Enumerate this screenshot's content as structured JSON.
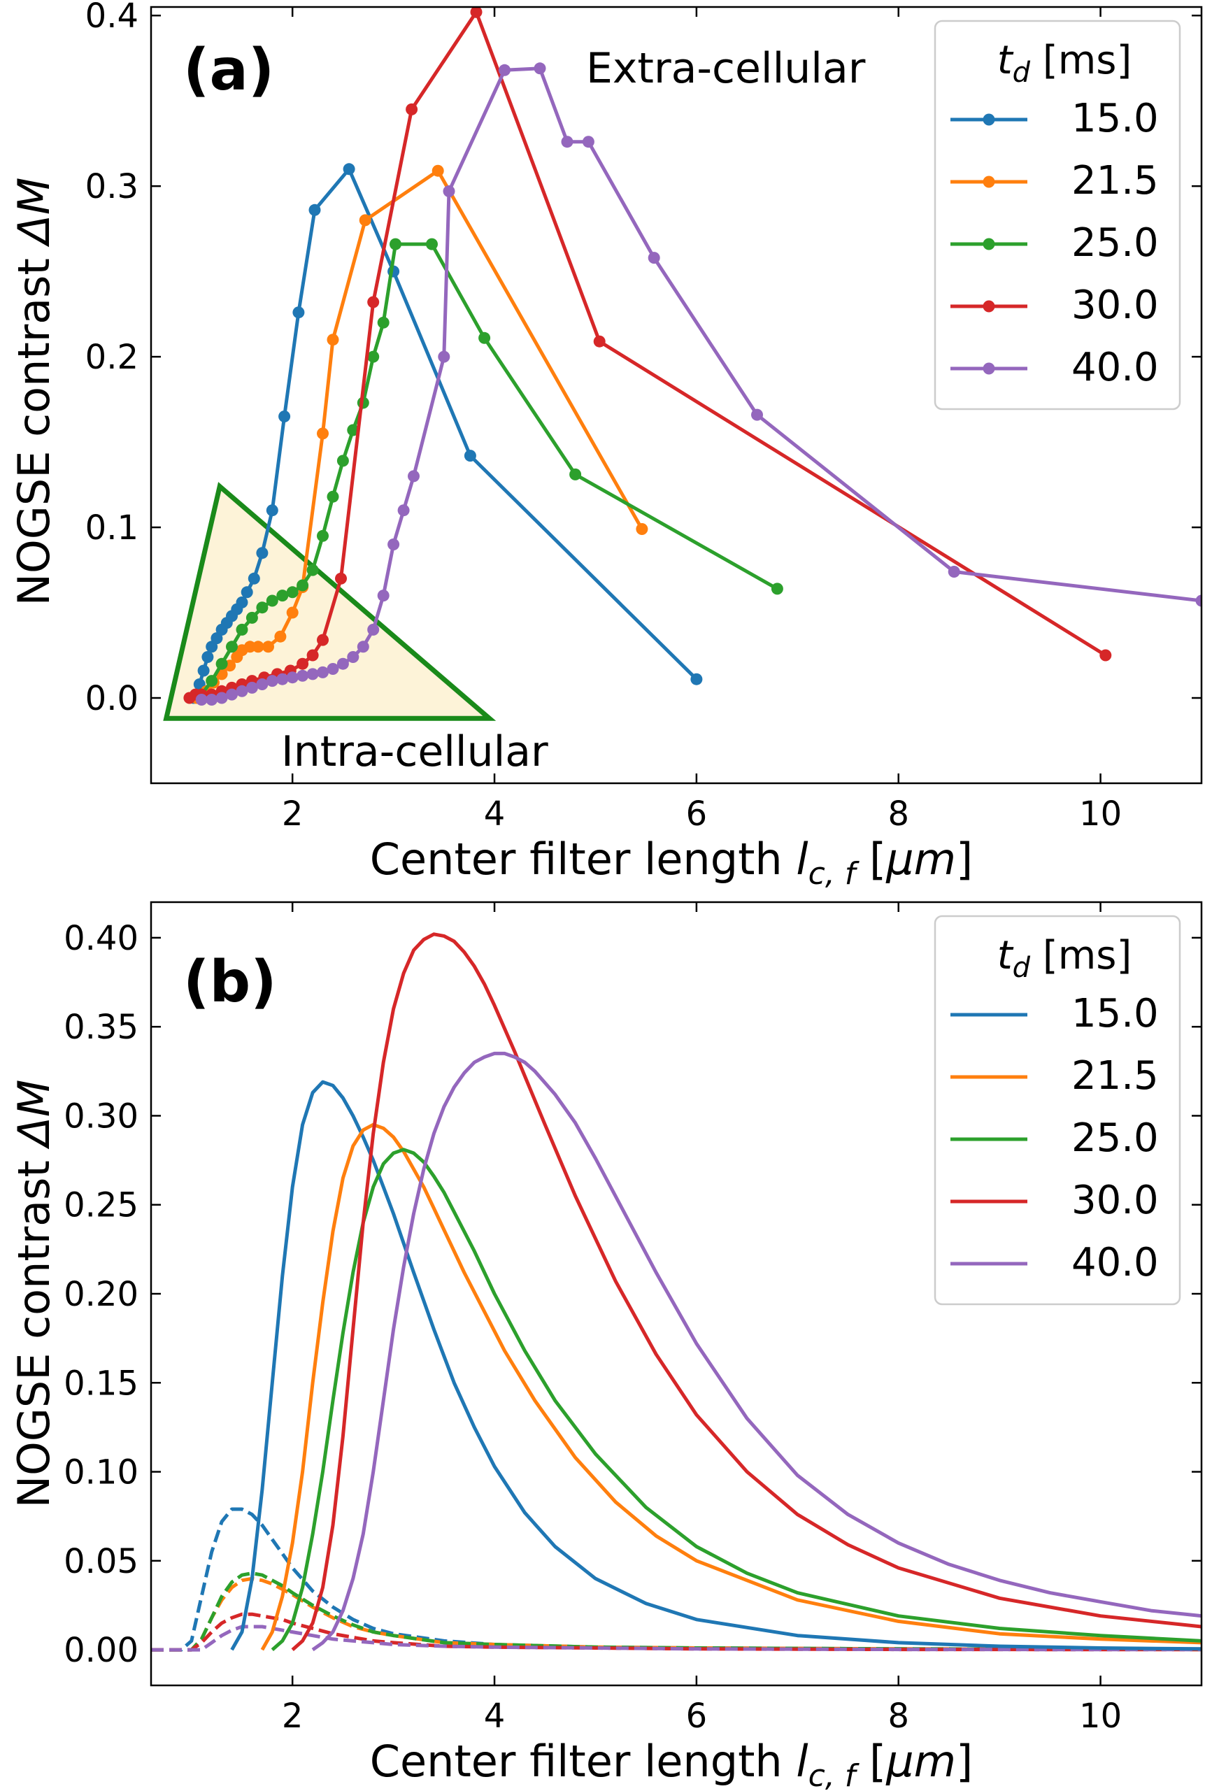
{
  "chart_data": [
    {
      "panel": "(a)",
      "type": "line",
      "xlabel": "Center filter length l_{c,f} [μm]",
      "ylabel": "NOGSE contrast ΔM",
      "xlim": [
        0.6,
        11.0
      ],
      "ylim": [
        -0.05,
        0.405
      ],
      "xticks": [
        2,
        4,
        6,
        8,
        10
      ],
      "yticks": [
        0.0,
        0.1,
        0.2,
        0.3,
        0.4
      ],
      "ytick_labels": [
        "0.0",
        "0.1",
        "0.2",
        "0.3",
        "0.4"
      ],
      "legend_title": "t_d [ms]",
      "legend_loc": "upper right",
      "annotations": {
        "extra": "Extra-cellular",
        "intra": "Intra-cellular"
      },
      "region": {
        "label": "Intra-cellular",
        "vertices": [
          [
            0.75,
            -0.012
          ],
          [
            1.28,
            0.124
          ],
          [
            3.95,
            -0.012
          ]
        ],
        "fill": "#fdf3d8",
        "edge": "#1a8a1a"
      },
      "series": [
        {
          "name": "15.0",
          "color": "#1f77b4",
          "x": [
            1.02,
            1.08,
            1.12,
            1.16,
            1.2,
            1.25,
            1.3,
            1.35,
            1.4,
            1.45,
            1.5,
            1.55,
            1.62,
            1.7,
            1.8,
            1.92,
            2.06,
            2.22,
            2.56,
            3.0,
            3.76,
            6.0
          ],
          "y": [
            0.0,
            0.008,
            0.016,
            0.024,
            0.03,
            0.035,
            0.04,
            0.044,
            0.048,
            0.052,
            0.056,
            0.062,
            0.07,
            0.085,
            0.11,
            0.165,
            0.226,
            0.286,
            0.31,
            0.25,
            0.142,
            0.011
          ]
        },
        {
          "name": "21.5",
          "color": "#ff7f0e",
          "x": [
            1.05,
            1.15,
            1.22,
            1.3,
            1.38,
            1.45,
            1.5,
            1.58,
            1.66,
            1.76,
            1.88,
            2.0,
            2.1,
            2.3,
            2.4,
            2.72,
            3.44,
            5.46
          ],
          "y": [
            0.0,
            0.004,
            0.009,
            0.014,
            0.019,
            0.024,
            0.028,
            0.03,
            0.03,
            0.03,
            0.036,
            0.05,
            0.065,
            0.155,
            0.21,
            0.28,
            0.309,
            0.099
          ]
        },
        {
          "name": "25.0",
          "color": "#2ca02c",
          "x": [
            1.1,
            1.2,
            1.3,
            1.4,
            1.5,
            1.6,
            1.7,
            1.8,
            1.9,
            2.0,
            2.1,
            2.2,
            2.3,
            2.4,
            2.5,
            2.6,
            2.7,
            2.8,
            2.9,
            3.02,
            3.38,
            3.9,
            4.8,
            6.8
          ],
          "y": [
            0.002,
            0.01,
            0.02,
            0.03,
            0.04,
            0.047,
            0.053,
            0.057,
            0.06,
            0.062,
            0.066,
            0.075,
            0.095,
            0.118,
            0.139,
            0.157,
            0.173,
            0.2,
            0.22,
            0.266,
            0.266,
            0.211,
            0.131,
            0.064
          ]
        },
        {
          "name": "30.0",
          "color": "#d62728",
          "x": [
            0.98,
            1.04,
            1.1,
            1.2,
            1.3,
            1.4,
            1.5,
            1.6,
            1.72,
            1.85,
            1.98,
            2.1,
            2.2,
            2.3,
            2.48,
            2.8,
            3.18,
            3.82,
            5.04,
            10.05
          ],
          "y": [
            0.0,
            0.002,
            0.002,
            0.002,
            0.004,
            0.006,
            0.008,
            0.01,
            0.012,
            0.014,
            0.016,
            0.02,
            0.025,
            0.034,
            0.07,
            0.232,
            0.345,
            0.402,
            0.209,
            0.025
          ]
        },
        {
          "name": "40.0",
          "color": "#9467bd",
          "x": [
            1.1,
            1.2,
            1.3,
            1.4,
            1.5,
            1.6,
            1.7,
            1.8,
            1.9,
            2.0,
            2.1,
            2.2,
            2.3,
            2.4,
            2.5,
            2.6,
            2.7,
            2.8,
            2.9,
            3.0,
            3.1,
            3.2,
            3.5,
            3.55,
            4.1,
            4.45,
            4.72,
            4.93,
            5.58,
            6.6,
            8.55,
            11.0
          ],
          "y": [
            -0.001,
            -0.001,
            0.0,
            0.002,
            0.004,
            0.006,
            0.008,
            0.01,
            0.011,
            0.012,
            0.013,
            0.014,
            0.015,
            0.017,
            0.02,
            0.024,
            0.03,
            0.04,
            0.06,
            0.09,
            0.11,
            0.13,
            0.2,
            0.297,
            0.368,
            0.369,
            0.326,
            0.326,
            0.258,
            0.166,
            0.074,
            0.057
          ]
        }
      ]
    },
    {
      "panel": "(b)",
      "type": "line",
      "xlabel": "Center filter length l_{c,f} [μm]",
      "ylabel": "NOGSE contrast ΔM",
      "xlim": [
        0.6,
        11.0
      ],
      "ylim": [
        -0.02,
        0.42
      ],
      "xticks": [
        2,
        4,
        6,
        8,
        10
      ],
      "yticks": [
        0.0,
        0.05,
        0.1,
        0.15,
        0.2,
        0.25,
        0.3,
        0.35,
        0.4
      ],
      "ytick_labels": [
        "0.00",
        "0.05",
        "0.10",
        "0.15",
        "0.20",
        "0.25",
        "0.30",
        "0.35",
        "0.40"
      ],
      "legend_title": "t_d [ms]",
      "legend_loc": "upper right",
      "series": [
        {
          "name": "15.0",
          "color": "#1f77b4",
          "x": [
            1.4,
            1.5,
            1.6,
            1.7,
            1.8,
            1.9,
            2.0,
            2.1,
            2.2,
            2.3,
            2.4,
            2.5,
            2.6,
            2.7,
            2.8,
            2.9,
            3.0,
            3.2,
            3.4,
            3.6,
            3.8,
            4.0,
            4.3,
            4.6,
            5.0,
            5.5,
            6.0,
            7.0,
            8.0,
            9.0,
            10.0,
            11.0
          ],
          "y": [
            0.0,
            0.01,
            0.04,
            0.09,
            0.15,
            0.21,
            0.26,
            0.295,
            0.313,
            0.319,
            0.317,
            0.31,
            0.3,
            0.288,
            0.275,
            0.26,
            0.245,
            0.212,
            0.18,
            0.15,
            0.125,
            0.103,
            0.077,
            0.058,
            0.04,
            0.026,
            0.017,
            0.008,
            0.004,
            0.002,
            0.001,
            0.0005
          ]
        },
        {
          "name": "21.5",
          "color": "#ff7f0e",
          "x": [
            1.7,
            1.8,
            1.9,
            2.0,
            2.1,
            2.2,
            2.3,
            2.4,
            2.5,
            2.6,
            2.7,
            2.8,
            2.9,
            3.0,
            3.1,
            3.2,
            3.3,
            3.4,
            3.5,
            3.7,
            3.9,
            4.1,
            4.4,
            4.8,
            5.2,
            5.6,
            6.0,
            7.0,
            8.0,
            9.0,
            10.0,
            11.0
          ],
          "y": [
            0.0,
            0.01,
            0.03,
            0.06,
            0.1,
            0.15,
            0.195,
            0.235,
            0.265,
            0.283,
            0.292,
            0.295,
            0.293,
            0.288,
            0.28,
            0.27,
            0.26,
            0.248,
            0.236,
            0.212,
            0.19,
            0.168,
            0.14,
            0.108,
            0.083,
            0.064,
            0.05,
            0.028,
            0.016,
            0.009,
            0.006,
            0.004
          ]
        },
        {
          "name": "25.0",
          "color": "#2ca02c",
          "x": [
            1.8,
            1.9,
            2.0,
            2.1,
            2.2,
            2.3,
            2.4,
            2.5,
            2.6,
            2.7,
            2.8,
            2.9,
            3.0,
            3.1,
            3.2,
            3.3,
            3.4,
            3.5,
            3.6,
            3.8,
            4.0,
            4.3,
            4.6,
            5.0,
            5.5,
            6.0,
            6.5,
            7.0,
            8.0,
            9.0,
            10.0,
            11.0
          ],
          "y": [
            0.0,
            0.005,
            0.015,
            0.035,
            0.065,
            0.1,
            0.14,
            0.178,
            0.212,
            0.24,
            0.26,
            0.273,
            0.279,
            0.281,
            0.279,
            0.274,
            0.266,
            0.257,
            0.246,
            0.224,
            0.2,
            0.168,
            0.14,
            0.11,
            0.08,
            0.058,
            0.043,
            0.032,
            0.019,
            0.012,
            0.008,
            0.005
          ]
        },
        {
          "name": "30.0",
          "color": "#d62728",
          "x": [
            2.0,
            2.1,
            2.2,
            2.3,
            2.4,
            2.5,
            2.6,
            2.7,
            2.8,
            2.9,
            3.0,
            3.1,
            3.2,
            3.3,
            3.4,
            3.5,
            3.6,
            3.7,
            3.8,
            3.9,
            4.0,
            4.2,
            4.5,
            4.8,
            5.2,
            5.6,
            6.0,
            6.5,
            7.0,
            7.5,
            8.0,
            9.0,
            10.0,
            11.0
          ],
          "y": [
            0.0,
            0.005,
            0.015,
            0.035,
            0.07,
            0.12,
            0.18,
            0.24,
            0.29,
            0.33,
            0.36,
            0.38,
            0.393,
            0.399,
            0.402,
            0.401,
            0.398,
            0.392,
            0.384,
            0.374,
            0.362,
            0.336,
            0.295,
            0.255,
            0.207,
            0.166,
            0.132,
            0.1,
            0.076,
            0.059,
            0.046,
            0.029,
            0.019,
            0.013
          ]
        },
        {
          "name": "40.0",
          "color": "#9467bd",
          "x": [
            2.2,
            2.3,
            2.4,
            2.5,
            2.6,
            2.7,
            2.8,
            2.9,
            3.0,
            3.1,
            3.2,
            3.3,
            3.4,
            3.5,
            3.6,
            3.7,
            3.8,
            3.9,
            4.0,
            4.1,
            4.2,
            4.3,
            4.4,
            4.6,
            4.8,
            5.0,
            5.3,
            5.6,
            6.0,
            6.5,
            7.0,
            7.5,
            8.0,
            8.5,
            9.0,
            9.5,
            10.0,
            10.5,
            11.0
          ],
          "y": [
            0.0,
            0.004,
            0.01,
            0.022,
            0.04,
            0.065,
            0.1,
            0.14,
            0.18,
            0.215,
            0.245,
            0.27,
            0.29,
            0.305,
            0.316,
            0.324,
            0.33,
            0.333,
            0.335,
            0.335,
            0.333,
            0.33,
            0.325,
            0.312,
            0.296,
            0.276,
            0.244,
            0.212,
            0.172,
            0.13,
            0.098,
            0.076,
            0.06,
            0.048,
            0.039,
            0.032,
            0.027,
            0.022,
            0.019
          ]
        }
      ],
      "dashed_series": [
        {
          "name": "15.0",
          "color": "#1f77b4",
          "x": [
            0.6,
            0.9,
            1.0,
            1.1,
            1.2,
            1.3,
            1.4,
            1.5,
            1.6,
            1.7,
            1.8,
            1.9,
            2.0,
            2.2,
            2.4,
            2.6,
            2.8,
            3.0,
            3.5,
            4.0,
            5.0,
            6.0,
            8.0,
            11.0
          ],
          "y": [
            0.0,
            0.0,
            0.005,
            0.03,
            0.055,
            0.072,
            0.079,
            0.079,
            0.076,
            0.07,
            0.062,
            0.054,
            0.046,
            0.033,
            0.024,
            0.017,
            0.012,
            0.009,
            0.005,
            0.003,
            0.0015,
            0.001,
            0.0005,
            0.0002
          ]
        },
        {
          "name": "21.5",
          "color": "#ff7f0e",
          "x": [
            0.6,
            1.0,
            1.1,
            1.2,
            1.3,
            1.4,
            1.5,
            1.6,
            1.7,
            1.8,
            1.9,
            2.0,
            2.2,
            2.4,
            2.6,
            2.8,
            3.0,
            3.5,
            4.0,
            5.0,
            6.0,
            8.0,
            11.0
          ],
          "y": [
            0.0,
            0.0,
            0.006,
            0.018,
            0.028,
            0.035,
            0.039,
            0.04,
            0.039,
            0.037,
            0.034,
            0.031,
            0.024,
            0.018,
            0.013,
            0.01,
            0.008,
            0.004,
            0.003,
            0.0015,
            0.001,
            0.0005,
            0.0002
          ]
        },
        {
          "name": "25.0",
          "color": "#2ca02c",
          "x": [
            0.6,
            1.0,
            1.1,
            1.2,
            1.3,
            1.4,
            1.5,
            1.6,
            1.7,
            1.8,
            1.9,
            2.0,
            2.2,
            2.4,
            2.6,
            2.8,
            3.0,
            3.5,
            4.0,
            5.0,
            6.0,
            8.0,
            11.0
          ],
          "y": [
            0.0,
            0.0,
            0.006,
            0.018,
            0.03,
            0.038,
            0.042,
            0.043,
            0.042,
            0.039,
            0.036,
            0.032,
            0.025,
            0.019,
            0.014,
            0.01,
            0.008,
            0.004,
            0.003,
            0.0015,
            0.001,
            0.0005,
            0.0002
          ]
        },
        {
          "name": "30.0",
          "color": "#d62728",
          "x": [
            0.6,
            1.0,
            1.1,
            1.2,
            1.3,
            1.4,
            1.5,
            1.6,
            1.7,
            1.8,
            1.9,
            2.0,
            2.2,
            2.4,
            2.6,
            2.8,
            3.0,
            3.5,
            4.0,
            5.0,
            6.0,
            8.0,
            11.0
          ],
          "y": [
            0.0,
            0.0,
            0.004,
            0.01,
            0.015,
            0.018,
            0.02,
            0.02,
            0.019,
            0.018,
            0.017,
            0.015,
            0.012,
            0.009,
            0.007,
            0.005,
            0.004,
            0.002,
            0.0015,
            0.001,
            0.0005,
            0.0002,
            0.0001
          ]
        },
        {
          "name": "40.0",
          "color": "#9467bd",
          "x": [
            0.6,
            1.1,
            1.2,
            1.3,
            1.4,
            1.5,
            1.6,
            1.7,
            1.8,
            1.9,
            2.0,
            2.2,
            2.4,
            2.6,
            2.8,
            3.0,
            3.5,
            4.0,
            5.0,
            6.0,
            8.0,
            11.0
          ],
          "y": [
            0.0,
            0.0,
            0.004,
            0.008,
            0.011,
            0.013,
            0.013,
            0.013,
            0.012,
            0.011,
            0.01,
            0.008,
            0.006,
            0.005,
            0.004,
            0.003,
            0.002,
            0.0015,
            0.001,
            0.0005,
            0.0002,
            0.0001
          ]
        }
      ]
    }
  ]
}
